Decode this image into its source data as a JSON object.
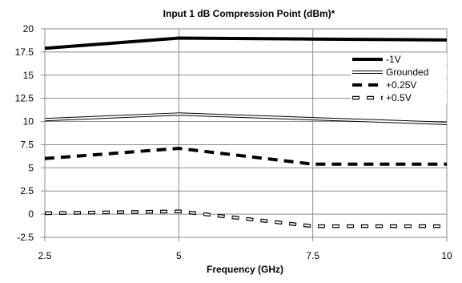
{
  "chart_data": {
    "type": "line",
    "title": "Input 1 dB Compression Point (dBm)*",
    "xlabel": "Frequency (GHz)",
    "ylabel": "",
    "xlim": [
      2.5,
      10
    ],
    "ylim": [
      -2.5,
      20
    ],
    "x_ticks": [
      "2.5",
      "5",
      "7.5",
      "10"
    ],
    "y_ticks": [
      "-2.5",
      "0",
      "2.5",
      "5",
      "7.5",
      "10",
      "12.5",
      "15",
      "17.5",
      "20"
    ],
    "grid": true,
    "legend_position": "top-right",
    "series": [
      {
        "name": "-1V",
        "style": "solid-thick",
        "x": [
          2.5,
          5,
          7.5,
          10
        ],
        "y": [
          17.9,
          19.0,
          18.9,
          18.8
        ]
      },
      {
        "name": "Grounded",
        "style": "double-line",
        "x": [
          2.5,
          5,
          7.5,
          10
        ],
        "y": [
          10.2,
          10.8,
          10.3,
          9.8
        ]
      },
      {
        "name": "+0.25V",
        "style": "dashed-thick",
        "x": [
          2.5,
          5,
          7.5,
          10
        ],
        "y": [
          6.0,
          7.1,
          5.4,
          5.4
        ]
      },
      {
        "name": "+0.5V",
        "style": "dashed-hollow",
        "x": [
          2.5,
          5,
          7.5,
          10
        ],
        "y": [
          0.1,
          0.3,
          -1.3,
          -1.3
        ]
      }
    ]
  }
}
